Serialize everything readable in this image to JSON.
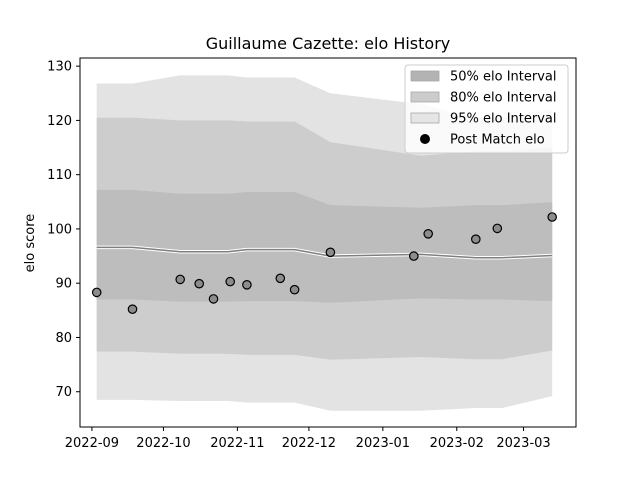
{
  "chart_data": {
    "type": "line",
    "title": "Guillaume Cazette: elo History",
    "xlabel": "",
    "ylabel": "elo score",
    "x_ticks": [
      "2022-09",
      "2022-10",
      "2022-11",
      "2022-12",
      "2023-01",
      "2023-02",
      "2023-03"
    ],
    "y_ticks": [
      70,
      80,
      90,
      100,
      110,
      120,
      130
    ],
    "ylim": [
      63.5,
      131.5
    ],
    "xlim": [
      "2022-08-27",
      "2023-03-23"
    ],
    "grid": false,
    "legend_position": "top-right",
    "legend": [
      {
        "label": "50% elo Interval",
        "kind": "band",
        "color": "#b3b3b3"
      },
      {
        "label": "80% elo Interval",
        "kind": "band",
        "color": "#cccccc"
      },
      {
        "label": "95% elo Interval",
        "kind": "band",
        "color": "#e5e5e5"
      },
      {
        "label": "Post Match elo",
        "kind": "marker",
        "color": "#000000"
      }
    ],
    "colors": {
      "band50": "#bdbdbd",
      "band80": "#cdcdcd",
      "band95": "#e3e3e3",
      "mean_line": "#7f7f7f",
      "marker_fill": "#8c8c8c",
      "marker_edge": "#000000"
    },
    "interval_series": [
      {
        "date": "2022-09-03",
        "mean": 96.6,
        "lo50": 87.0,
        "hi50": 107.2,
        "lo80": 77.4,
        "hi80": 120.5,
        "lo95": 68.5,
        "hi95": 126.8
      },
      {
        "date": "2022-09-18",
        "mean": 96.6,
        "lo50": 87.0,
        "hi50": 107.2,
        "lo80": 77.4,
        "hi80": 120.5,
        "lo95": 68.5,
        "hi95": 126.8
      },
      {
        "date": "2022-10-08",
        "mean": 95.8,
        "lo50": 86.6,
        "hi50": 106.5,
        "lo80": 77.0,
        "hi80": 120.0,
        "lo95": 68.3,
        "hi95": 128.3
      },
      {
        "date": "2022-10-28",
        "mean": 95.8,
        "lo50": 86.6,
        "hi50": 106.5,
        "lo80": 77.0,
        "hi80": 120.0,
        "lo95": 68.3,
        "hi95": 128.3
      },
      {
        "date": "2022-11-05",
        "mean": 96.2,
        "lo50": 86.7,
        "hi50": 106.8,
        "lo80": 76.8,
        "hi80": 119.8,
        "lo95": 68.0,
        "hi95": 127.9
      },
      {
        "date": "2022-11-25",
        "mean": 96.2,
        "lo50": 86.7,
        "hi50": 106.8,
        "lo80": 76.8,
        "hi80": 119.8,
        "lo95": 68.0,
        "hi95": 127.9
      },
      {
        "date": "2022-12-10",
        "mean": 95.0,
        "lo50": 86.4,
        "hi50": 104.4,
        "lo80": 75.9,
        "hi80": 116.0,
        "lo95": 66.5,
        "hi95": 125.0
      },
      {
        "date": "2023-01-17",
        "mean": 95.3,
        "lo50": 87.2,
        "hi50": 103.9,
        "lo80": 76.4,
        "hi80": 113.5,
        "lo95": 66.5,
        "hi95": 123.0
      },
      {
        "date": "2023-02-09",
        "mean": 94.7,
        "lo50": 87.0,
        "hi50": 104.4,
        "lo80": 76.0,
        "hi80": 114.3,
        "lo95": 67.0,
        "hi95": 120.5
      },
      {
        "date": "2023-02-20",
        "mean": 94.7,
        "lo50": 87.0,
        "hi50": 104.4,
        "lo80": 76.0,
        "hi80": 114.3,
        "lo95": 67.0,
        "hi95": 120.5
      },
      {
        "date": "2023-03-13",
        "mean": 95.1,
        "lo50": 86.7,
        "hi50": 104.9,
        "lo80": 77.6,
        "hi80": 115.0,
        "lo95": 69.2,
        "hi95": 122.0
      }
    ],
    "post_match_elo": [
      {
        "date": "2022-09-03",
        "elo": 88.3
      },
      {
        "date": "2022-09-18",
        "elo": 85.2
      },
      {
        "date": "2022-10-08",
        "elo": 90.7
      },
      {
        "date": "2022-10-16",
        "elo": 89.9
      },
      {
        "date": "2022-10-22",
        "elo": 87.1
      },
      {
        "date": "2022-10-29",
        "elo": 90.3
      },
      {
        "date": "2022-11-05",
        "elo": 89.7
      },
      {
        "date": "2022-11-19",
        "elo": 90.9
      },
      {
        "date": "2022-11-25",
        "elo": 88.8
      },
      {
        "date": "2022-12-10",
        "elo": 95.7
      },
      {
        "date": "2023-01-14",
        "elo": 95.0
      },
      {
        "date": "2023-01-20",
        "elo": 99.1
      },
      {
        "date": "2023-02-09",
        "elo": 98.1
      },
      {
        "date": "2023-02-18",
        "elo": 100.1
      },
      {
        "date": "2023-03-13",
        "elo": 102.2
      }
    ]
  }
}
